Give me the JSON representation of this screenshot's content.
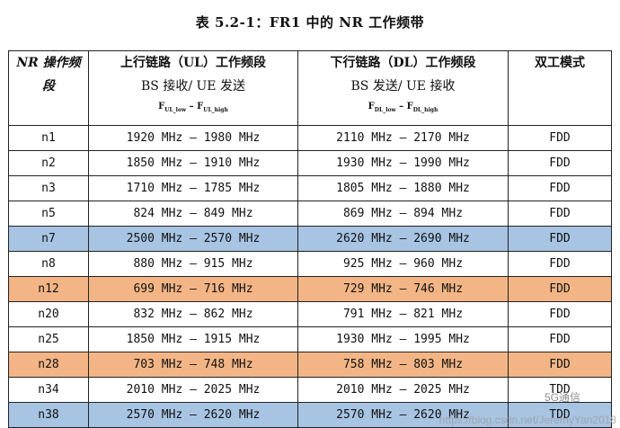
{
  "title": "表 5.2-1：FR1 中的 NR 工作频带",
  "header": {
    "col0": [
      "NR 操作频",
      "段"
    ],
    "col1": {
      "line1": "上行链路（UL）工作频段",
      "line2": "BS 接收/ UE 发送",
      "f_low": "UL_low",
      "f_high": "UL_high"
    },
    "col2": {
      "line1": "下行链路（DL）工作频段",
      "line2": "BS 发送/ UE 接收",
      "f_low": "DL_low",
      "f_high": "DL_high"
    },
    "col3": "双工模式",
    "f": "F",
    "dash": "–"
  },
  "rows": [
    {
      "band": "n1",
      "ul": "1920 MHz – 1980 MHz",
      "dl": "2110 MHz – 2170 MHz",
      "mode": "FDD",
      "hl": "none"
    },
    {
      "band": "n2",
      "ul": "1850 MHz – 1910 MHz",
      "dl": "1930 MHz – 1990 MHz",
      "mode": "FDD",
      "hl": "none"
    },
    {
      "band": "n3",
      "ul": "1710 MHz – 1785 MHz",
      "dl": "1805 MHz – 1880 MHz",
      "mode": "FDD",
      "hl": "none"
    },
    {
      "band": "n5",
      "ul": "824 MHz – 849 MHz",
      "dl": "869 MHz – 894 MHz",
      "mode": "FDD",
      "hl": "none"
    },
    {
      "band": "n7",
      "ul": "2500 MHz – 2570 MHz",
      "dl": "2620 MHz – 2690 MHz",
      "mode": "FDD",
      "hl": "blue"
    },
    {
      "band": "n8",
      "ul": "880 MHz – 915 MHz",
      "dl": "925 MHz – 960 MHz",
      "mode": "FDD",
      "hl": "none"
    },
    {
      "band": "n12",
      "ul": "699 MHz – 716 MHz",
      "dl": "729 MHz – 746 MHz",
      "mode": "FDD",
      "hl": "orange"
    },
    {
      "band": "n20",
      "ul": "832 MHz – 862 MHz",
      "dl": "791 MHz – 821 MHz",
      "mode": "FDD",
      "hl": "none"
    },
    {
      "band": "n25",
      "ul": "1850 MHz – 1915 MHz",
      "dl": "1930 MHz – 1995 MHz",
      "mode": "FDD",
      "hl": "none"
    },
    {
      "band": "n28",
      "ul": "703 MHz – 748 MHz",
      "dl": "758 MHz – 803 MHz",
      "mode": "FDD",
      "hl": "orange"
    },
    {
      "band": "n34",
      "ul": "2010 MHz – 2025 MHz",
      "dl": "2010 MHz – 2025 MHz",
      "mode": "TDD",
      "hl": "none"
    },
    {
      "band": "n38",
      "ul": "2570 MHz – 2620 MHz",
      "dl": "2570 MHz – 2620 MHz",
      "mode": "TDD",
      "hl": "blue"
    }
  ],
  "watermark": {
    "source": "5G通信",
    "url": "https://blog.csdn.net/JeremyYan2018"
  },
  "colors": {
    "blue": "#a7c4e3",
    "orange": "#f3b585"
  }
}
